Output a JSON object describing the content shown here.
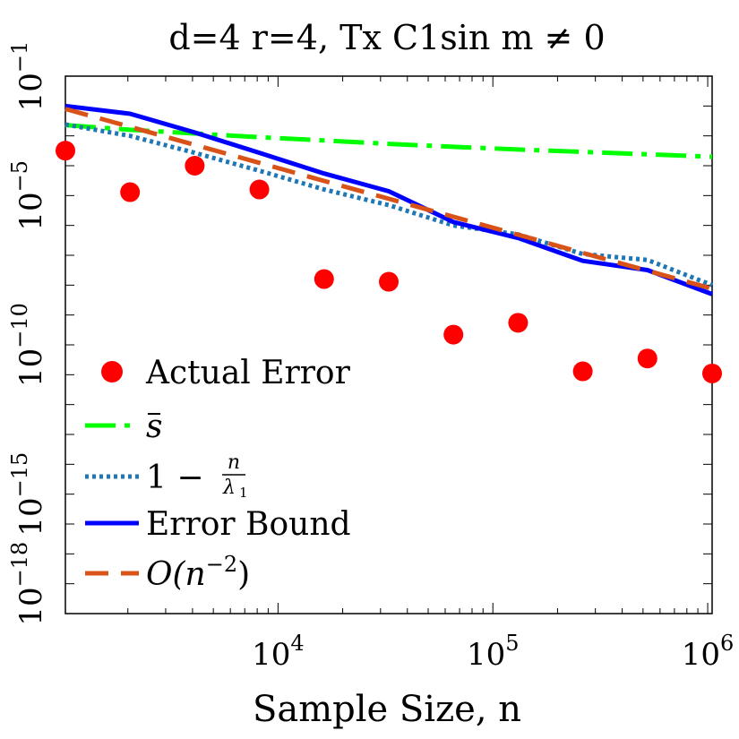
{
  "chart_data": {
    "type": "line",
    "title": "d=4 r=4, Tx C1sin m ≠ 0",
    "xlabel": "Sample Size, n",
    "ylabel": "",
    "xscale": "log",
    "yscale": "log",
    "xlim": [
      1024,
      1048576
    ],
    "ylim": [
      1e-19,
      0.1
    ],
    "x_ticks": [
      10000,
      100000,
      1000000
    ],
    "x_tick_labels": [
      "10^4",
      "10^5",
      "10^6"
    ],
    "y_ticks": [
      0.1,
      1e-05,
      1e-10,
      1e-15,
      1e-18
    ],
    "y_tick_labels": [
      "10^-1",
      "10^-5",
      "10^-10",
      "10^-15",
      "10^-18"
    ],
    "grid": false,
    "legend_position": "bottom-left",
    "x": [
      1024,
      2048,
      4096,
      8192,
      16384,
      32768,
      65536,
      131072,
      262144,
      524288,
      1048576
    ],
    "series": [
      {
        "name": "Actual Error",
        "style": "markers",
        "color": "#ff0000",
        "values": [
          0.00032,
          1.3e-05,
          0.0001,
          1.6e-05,
          1.6e-08,
          1.3e-08,
          2.2e-10,
          5.5e-10,
          1.3e-11,
          3.5e-11,
          1.1e-11
        ]
      },
      {
        "name": "s̄",
        "legend_main": "s",
        "style": "dash-dot",
        "color": "#00ff00",
        "values": [
          0.0023,
          0.0016,
          0.0012,
          0.0009,
          0.0007,
          0.00054,
          0.00043,
          0.00035,
          0.00029,
          0.00024,
          0.0002
        ]
      },
      {
        "name": "1 − n/λ1",
        "legend_prefix": "1 −",
        "legend_num": "n",
        "legend_den": "λ",
        "legend_den_sub": "1",
        "style": "dotted",
        "color": "#1f77b4",
        "values": [
          0.0024,
          0.001,
          0.00027,
          6.8e-05,
          1.6e-05,
          4.8e-06,
          1e-06,
          5e-07,
          1.1e-07,
          7e-08,
          1e-08
        ]
      },
      {
        "name": "Error Bound",
        "style": "solid",
        "color": "#0000ff",
        "values": [
          0.01,
          0.0055,
          0.0013,
          0.00027,
          5.5e-05,
          1.4e-05,
          1.3e-06,
          3.8e-07,
          6.5e-08,
          3.2e-08,
          5e-09
        ]
      },
      {
        "name": "O(n^{-2})",
        "legend_base": "O(n",
        "legend_sup": "−2",
        "legend_close": ")",
        "style": "dashed",
        "color": "#d95319",
        "values": [
          0.008,
          0.002,
          0.0005,
          0.000125,
          3.1e-05,
          7.8e-06,
          1.95e-06,
          4.9e-07,
          1.2e-07,
          3.05e-08,
          7.6e-09
        ]
      }
    ]
  }
}
